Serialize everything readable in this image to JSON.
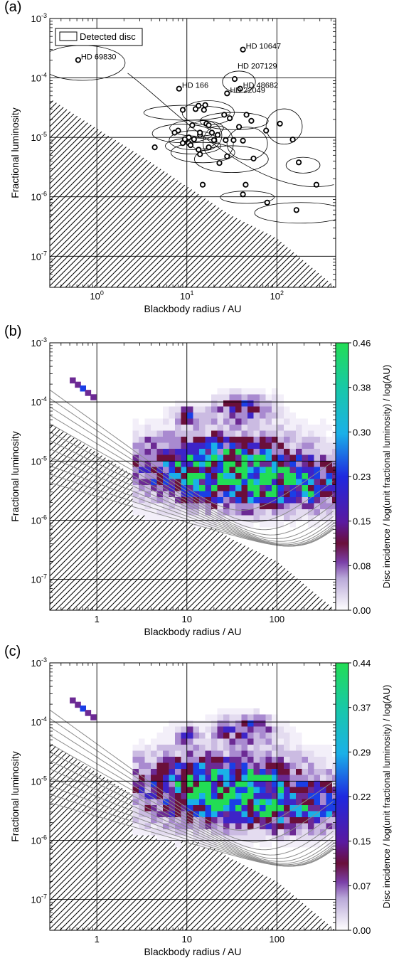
{
  "chart_data": [
    {
      "panel_label": "(a)",
      "type": "scatter",
      "xlabel": "Blackbody radius / AU",
      "ylabel": "Fractional luminosity",
      "xscale": "log",
      "yscale": "log",
      "xlim": [
        0.3,
        450
      ],
      "ylim": [
        3e-08,
        0.001
      ],
      "x_ticks": [
        {
          "v": 1,
          "t": "10",
          "e": "0"
        },
        {
          "v": 10,
          "t": "10",
          "e": "1"
        },
        {
          "v": 100,
          "t": "10",
          "e": "2"
        }
      ],
      "y_ticks": [
        {
          "v": 1e-07,
          "t": "10",
          "e": "-7"
        },
        {
          "v": 1e-06,
          "t": "10",
          "e": "-6"
        },
        {
          "v": 1e-05,
          "t": "10",
          "e": "-5"
        },
        {
          "v": 0.0001,
          "t": "10",
          "e": "-4"
        },
        {
          "v": 0.001,
          "t": "10",
          "e": "-3"
        }
      ],
      "grid": true,
      "legend": {
        "label": "Detected disc",
        "placement": "top-left"
      },
      "points": [
        {
          "x": 0.62,
          "y": 0.0002
        },
        {
          "x": 8.2,
          "y": 6.6e-05
        },
        {
          "x": 42,
          "y": 0.0003
        },
        {
          "x": 34,
          "y": 9.6e-05
        },
        {
          "x": 39,
          "y": 6.6e-05
        },
        {
          "x": 28,
          "y": 5.5e-05
        },
        {
          "x": 9.0,
          "y": 2.9e-05
        },
        {
          "x": 12.5,
          "y": 3e-05
        },
        {
          "x": 13.5,
          "y": 3.4e-05
        },
        {
          "x": 15.5,
          "y": 2.9e-05
        },
        {
          "x": 16,
          "y": 3.5e-05
        },
        {
          "x": 26,
          "y": 2.4e-05
        },
        {
          "x": 30,
          "y": 2.1e-05
        },
        {
          "x": 46,
          "y": 2.4e-05
        },
        {
          "x": 52,
          "y": 1.9e-05
        },
        {
          "x": 108,
          "y": 1.7e-05
        },
        {
          "x": 16.5,
          "y": 1.7e-05
        },
        {
          "x": 17.5,
          "y": 1.6e-05
        },
        {
          "x": 11.5,
          "y": 1.6e-05
        },
        {
          "x": 38,
          "y": 1.5e-05
        },
        {
          "x": 76,
          "y": 1.3e-05
        },
        {
          "x": 8.0,
          "y": 1.3e-05
        },
        {
          "x": 7.3,
          "y": 1.2e-05
        },
        {
          "x": 14,
          "y": 1.1e-05
        },
        {
          "x": 14,
          "y": 1.2e-05
        },
        {
          "x": 19,
          "y": 1.2e-05
        },
        {
          "x": 22,
          "y": 1.1e-05
        },
        {
          "x": 10.5,
          "y": 1e-05
        },
        {
          "x": 9.5,
          "y": 9.3e-06
        },
        {
          "x": 12,
          "y": 9.3e-06
        },
        {
          "x": 20,
          "y": 9e-06
        },
        {
          "x": 27,
          "y": 9e-06
        },
        {
          "x": 33,
          "y": 9e-06
        },
        {
          "x": 42,
          "y": 8.8e-06
        },
        {
          "x": 150,
          "y": 9.2e-06
        },
        {
          "x": 9.0,
          "y": 8e-06
        },
        {
          "x": 10.5,
          "y": 8e-06
        },
        {
          "x": 4.4,
          "y": 6.8e-06
        },
        {
          "x": 11,
          "y": 7.4e-06
        },
        {
          "x": 13.5,
          "y": 6.2e-06
        },
        {
          "x": 17.5,
          "y": 6.8e-06
        },
        {
          "x": 14,
          "y": 5.2e-06
        },
        {
          "x": 28,
          "y": 4.8e-06
        },
        {
          "x": 55,
          "y": 4.4e-06
        },
        {
          "x": 23,
          "y": 3.7e-06
        },
        {
          "x": 175,
          "y": 3.8e-06
        },
        {
          "x": 15,
          "y": 1.6e-06
        },
        {
          "x": 45,
          "y": 1.6e-06
        },
        {
          "x": 42,
          "y": 1.1e-06
        },
        {
          "x": 275,
          "y": 1.6e-06
        },
        {
          "x": 78,
          "y": 8e-07
        },
        {
          "x": 165,
          "y": 6e-07
        }
      ],
      "annotations": [
        {
          "text": "HD 69830",
          "x": 0.62,
          "y": 0.0002
        },
        {
          "text": "HD 10647",
          "x": 42,
          "y": 0.0003
        },
        {
          "text": "HD 207129",
          "x": 34,
          "y": 0.00014
        },
        {
          "text": "HD 166",
          "x": 8.2,
          "y": 6.6e-05
        },
        {
          "text": "HD 48682",
          "x": 39,
          "y": 6.6e-05
        },
        {
          "text": "HD 22049",
          "x": 28,
          "y": 5.5e-05
        }
      ]
    },
    {
      "panel_label": "(b)",
      "type": "heatmap",
      "xlabel": "Blackbody radius / AU",
      "ylabel": "Fractional luminosity",
      "xscale": "log",
      "yscale": "log",
      "xlim": [
        0.3,
        450
      ],
      "ylim": [
        3e-08,
        0.001
      ],
      "x_ticks": [
        {
          "v": 1,
          "t": "1"
        },
        {
          "v": 10,
          "t": "10"
        },
        {
          "v": 100,
          "t": "100"
        }
      ],
      "y_ticks": [
        {
          "v": 1e-07,
          "t": "10",
          "e": "-7"
        },
        {
          "v": 1e-06,
          "t": "10",
          "e": "-6"
        },
        {
          "v": 1e-05,
          "t": "10",
          "e": "-5"
        },
        {
          "v": 0.0001,
          "t": "10",
          "e": "-4"
        },
        {
          "v": 0.001,
          "t": "10",
          "e": "-3"
        }
      ],
      "grid": true,
      "colorbar": {
        "label": "Disc incidence / log(unit fractional luminosity) / log(AU)",
        "range": [
          0,
          0.46
        ],
        "ticks": [
          "0.00",
          "0.08",
          "0.15",
          "0.23",
          "0.30",
          "0.38",
          "0.46"
        ]
      }
    },
    {
      "panel_label": "(c)",
      "type": "heatmap",
      "xlabel": "Blackbody radius / AU",
      "ylabel": "Fractional luminosity",
      "xscale": "log",
      "yscale": "log",
      "xlim": [
        0.3,
        450
      ],
      "ylim": [
        3e-08,
        0.001
      ],
      "x_ticks": [
        {
          "v": 1,
          "t": "1"
        },
        {
          "v": 10,
          "t": "10"
        },
        {
          "v": 100,
          "t": "100"
        }
      ],
      "y_ticks": [
        {
          "v": 1e-07,
          "t": "10",
          "e": "-7"
        },
        {
          "v": 1e-06,
          "t": "10",
          "e": "-6"
        },
        {
          "v": 1e-05,
          "t": "10",
          "e": "-5"
        },
        {
          "v": 0.0001,
          "t": "10",
          "e": "-4"
        },
        {
          "v": 0.001,
          "t": "10",
          "e": "-3"
        }
      ],
      "grid": true,
      "colorbar": {
        "label": "Disc incidence / log(unit fractional luminosity) / log(AU)",
        "range": [
          0,
          0.44
        ],
        "ticks": [
          "0.00",
          "0.07",
          "0.15",
          "0.22",
          "0.29",
          "0.37",
          "0.44"
        ]
      }
    }
  ]
}
